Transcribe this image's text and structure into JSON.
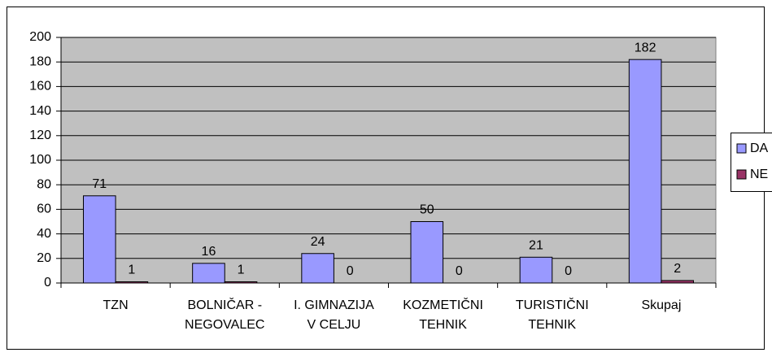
{
  "chart_data": {
    "type": "bar",
    "categories": [
      [
        "TZN"
      ],
      [
        "BOLNIČAR -",
        "NEGOVALEC"
      ],
      [
        "I. GIMNAZIJA",
        "V CELJU"
      ],
      [
        "KOZMETIČNI",
        "TEHNIK"
      ],
      [
        "TURISTIČNI",
        "TEHNIK"
      ],
      [
        "Skupaj"
      ]
    ],
    "series": [
      {
        "name": "DA",
        "color": "#9999ff",
        "values": [
          71,
          16,
          24,
          50,
          21,
          182
        ]
      },
      {
        "name": "NE",
        "color": "#993366",
        "values": [
          1,
          1,
          0,
          0,
          0,
          2
        ]
      }
    ],
    "ylim": [
      0,
      200
    ],
    "yticks": [
      0,
      20,
      40,
      60,
      80,
      100,
      120,
      140,
      160,
      180,
      200
    ],
    "grid": true,
    "legend": "right",
    "plot_background": "#c0c0c0"
  }
}
